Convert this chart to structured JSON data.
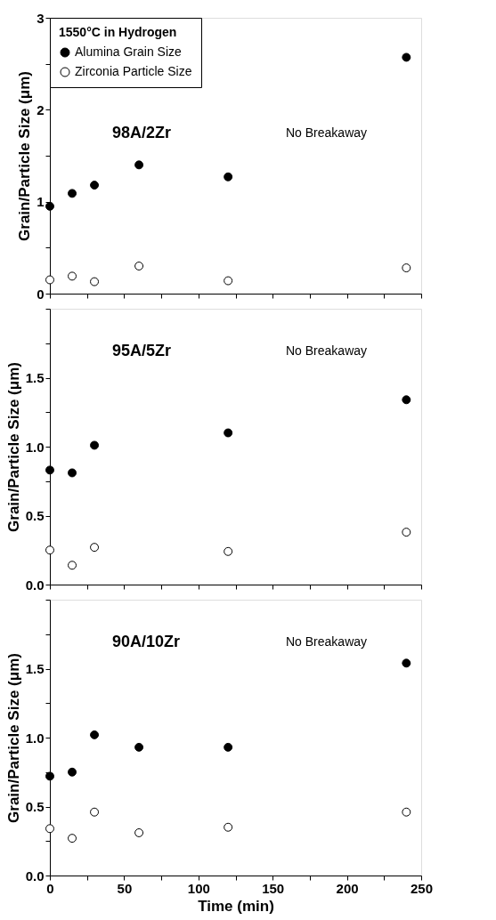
{
  "chart_data": [
    {
      "type": "scatter",
      "ylabel": "Grain/Particle Size (μm)",
      "legend_title": "1550°C in Hydrogen",
      "legend": "top left",
      "marker": "circle",
      "grid": false,
      "tick_labels": "y",
      "annotations": [
        "98A/2Zr",
        "No Breakaway"
      ],
      "xlim": [
        0,
        250
      ],
      "xticks": [
        {
          "value": 0,
          "label": null
        },
        {
          "value": 25,
          "label": null
        },
        {
          "value": 50,
          "label": null
        },
        {
          "value": 75,
          "label": null
        },
        {
          "value": 100,
          "label": null
        },
        {
          "value": 125,
          "label": null
        },
        {
          "value": 150,
          "label": null
        },
        {
          "value": 175,
          "label": null
        },
        {
          "value": 200,
          "label": null
        },
        {
          "value": 225,
          "label": null
        },
        {
          "value": 250,
          "label": null
        }
      ],
      "ylim": [
        0,
        3
      ],
      "yticks": [
        0,
        {
          "value": 0.5,
          "label": null
        },
        1,
        {
          "value": 1.5,
          "label": null
        },
        2,
        {
          "value": 2.5,
          "label": null
        },
        3
      ],
      "x": [
        0,
        15,
        30,
        60,
        120,
        240
      ],
      "series": [
        {
          "name": "Alumina Grain Size",
          "color": "#000000",
          "values": [
            0.95,
            1.09,
            1.18,
            1.4,
            1.27,
            2.57
          ]
        },
        {
          "name": "Zirconia Particle Size",
          "color": "#ffffff",
          "values": [
            0.15,
            0.19,
            0.13,
            0.3,
            0.14,
            0.28
          ]
        }
      ]
    },
    {
      "type": "scatter",
      "ylabel": "Grain/Particle Size (μm)",
      "marker": "circle",
      "grid": false,
      "tick_labels": "y",
      "annotations": [
        "95A/5Zr",
        "No Breakaway"
      ],
      "xlim": [
        0,
        250
      ],
      "xticks": [
        {
          "value": 0,
          "label": null
        },
        {
          "value": 25,
          "label": null
        },
        {
          "value": 50,
          "label": null
        },
        {
          "value": 75,
          "label": null
        },
        {
          "value": 100,
          "label": null
        },
        {
          "value": 125,
          "label": null
        },
        {
          "value": 150,
          "label": null
        },
        {
          "value": 175,
          "label": null
        },
        {
          "value": 200,
          "label": null
        },
        {
          "value": 225,
          "label": null
        },
        {
          "value": 250,
          "label": null
        }
      ],
      "ylim": [
        0,
        2
      ],
      "yticks": [
        {
          "value": 0,
          "label": "0.0"
        },
        {
          "value": 0.25,
          "label": null
        },
        {
          "value": 0.5,
          "label": "0.5"
        },
        {
          "value": 0.75,
          "label": null
        },
        {
          "value": 1,
          "label": "1.0"
        },
        {
          "value": 1.25,
          "label": null
        },
        {
          "value": 1.5,
          "label": "1.5"
        },
        {
          "value": 1.75,
          "label": null
        },
        {
          "value": 2,
          "label": null
        }
      ],
      "x": [
        0,
        15,
        30,
        120,
        240
      ],
      "series": [
        {
          "color": "#000000",
          "values": [
            0.83,
            0.81,
            1.01,
            1.1,
            1.34
          ]
        },
        {
          "color": "#ffffff",
          "values": [
            0.25,
            0.14,
            0.27,
            0.24,
            0.38
          ]
        }
      ]
    },
    {
      "type": "scatter",
      "xlabel": "Time (min)",
      "ylabel": "Grain/Particle Size (μm)",
      "marker": "circle",
      "grid": false,
      "annotations": [
        "90A/10Zr",
        "No Breakaway"
      ],
      "xlim": [
        0,
        250
      ],
      "xticks": [
        0,
        {
          "value": 25,
          "label": null
        },
        50,
        {
          "value": 75,
          "label": null
        },
        100,
        {
          "value": 125,
          "label": null
        },
        150,
        {
          "value": 175,
          "label": null
        },
        200,
        {
          "value": 225,
          "label": null
        },
        250
      ],
      "ylim": [
        0,
        2
      ],
      "yticks": [
        {
          "value": 0,
          "label": "0.0"
        },
        {
          "value": 0.25,
          "label": null
        },
        {
          "value": 0.5,
          "label": "0.5"
        },
        {
          "value": 0.75,
          "label": null
        },
        {
          "value": 1,
          "label": "1.0"
        },
        {
          "value": 1.25,
          "label": null
        },
        {
          "value": 1.5,
          "label": "1.5"
        },
        {
          "value": 1.75,
          "label": null
        },
        {
          "value": 2,
          "label": null
        }
      ],
      "x": [
        0,
        15,
        30,
        60,
        120,
        240
      ],
      "series": [
        {
          "color": "#000000",
          "values": [
            0.72,
            0.75,
            1.02,
            0.93,
            0.93,
            1.54
          ]
        },
        {
          "color": "#ffffff",
          "values": [
            0.34,
            0.27,
            0.46,
            0.31,
            0.35,
            0.46
          ]
        }
      ]
    }
  ]
}
